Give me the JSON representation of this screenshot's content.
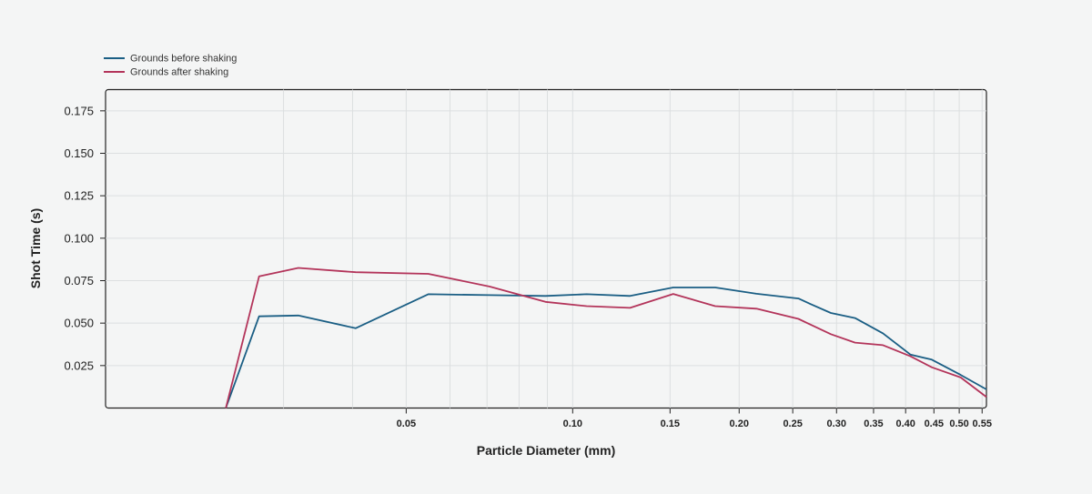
{
  "chart_data": {
    "type": "line",
    "title": "",
    "xlabel": "Particle Diameter (mm)",
    "ylabel": "Shot Time (s)",
    "x_scale": "log",
    "xlim": [
      0.0143,
      0.56
    ],
    "ylim": [
      0,
      0.1875
    ],
    "grid": true,
    "legend_position": "top-left",
    "x_ticks": [
      {
        "v": 0.05,
        "label": "0.05"
      },
      {
        "v": 0.1,
        "label": "0.10"
      },
      {
        "v": 0.15,
        "label": "0.15"
      },
      {
        "v": 0.2,
        "label": "0.20"
      },
      {
        "v": 0.25,
        "label": "0.25"
      },
      {
        "v": 0.3,
        "label": "0.30"
      },
      {
        "v": 0.35,
        "label": "0.35"
      },
      {
        "v": 0.4,
        "label": "0.40"
      },
      {
        "v": 0.45,
        "label": "0.45"
      },
      {
        "v": 0.5,
        "label": "0.50"
      },
      {
        "v": 0.55,
        "label": "0.55"
      }
    ],
    "y_ticks": [
      {
        "v": 0.025,
        "label": "0.025"
      },
      {
        "v": 0.05,
        "label": "0.050"
      },
      {
        "v": 0.075,
        "label": "0.075"
      },
      {
        "v": 0.1,
        "label": "0.100"
      },
      {
        "v": 0.125,
        "label": "0.125"
      },
      {
        "v": 0.15,
        "label": "0.150"
      },
      {
        "v": 0.175,
        "label": "0.175"
      }
    ],
    "x_gridlines": [
      0.03,
      0.04,
      0.05,
      0.06,
      0.07,
      0.08,
      0.09,
      0.1,
      0.15,
      0.2,
      0.25,
      0.3,
      0.35,
      0.4,
      0.45,
      0.5,
      0.55
    ],
    "series": [
      {
        "name": "Grounds before shaking",
        "color": "#1a5e84",
        "points": [
          [
            0.0236,
            0.0
          ],
          [
            0.0271,
            0.054
          ],
          [
            0.0319,
            0.0545
          ],
          [
            0.0405,
            0.047
          ],
          [
            0.0548,
            0.067
          ],
          [
            0.0708,
            0.0665
          ],
          [
            0.0893,
            0.066
          ],
          [
            0.106,
            0.067
          ],
          [
            0.127,
            0.066
          ],
          [
            0.152,
            0.071
          ],
          [
            0.181,
            0.071
          ],
          [
            0.215,
            0.0673
          ],
          [
            0.256,
            0.0645
          ],
          [
            0.27,
            0.061
          ],
          [
            0.293,
            0.056
          ],
          [
            0.324,
            0.053
          ],
          [
            0.364,
            0.044
          ],
          [
            0.408,
            0.0315
          ],
          [
            0.446,
            0.0285
          ],
          [
            0.503,
            0.0195
          ],
          [
            0.56,
            0.011
          ]
        ]
      },
      {
        "name": "Grounds after shaking",
        "color": "#b3345a",
        "points": [
          [
            0.0236,
            0.0
          ],
          [
            0.0271,
            0.0775
          ],
          [
            0.0319,
            0.0825
          ],
          [
            0.0405,
            0.08
          ],
          [
            0.0548,
            0.079
          ],
          [
            0.0708,
            0.0715
          ],
          [
            0.0893,
            0.0625
          ],
          [
            0.106,
            0.06
          ],
          [
            0.127,
            0.059
          ],
          [
            0.152,
            0.0672
          ],
          [
            0.181,
            0.06
          ],
          [
            0.215,
            0.0585
          ],
          [
            0.256,
            0.0525
          ],
          [
            0.293,
            0.0435
          ],
          [
            0.324,
            0.0385
          ],
          [
            0.364,
            0.037
          ],
          [
            0.408,
            0.0305
          ],
          [
            0.446,
            0.024
          ],
          [
            0.503,
            0.018
          ],
          [
            0.56,
            0.0065
          ]
        ]
      }
    ]
  }
}
